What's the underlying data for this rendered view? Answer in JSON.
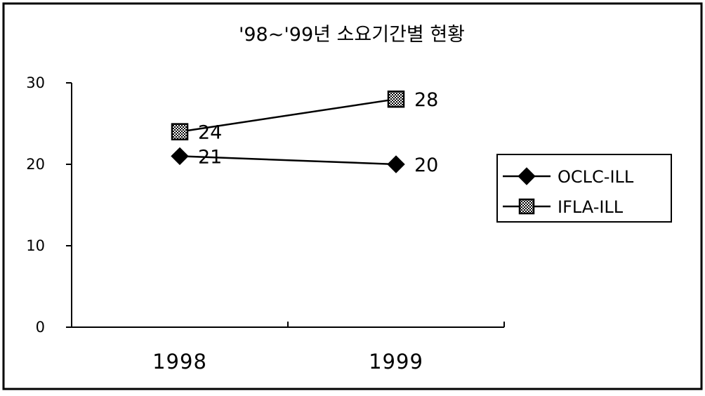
{
  "chart_data": {
    "type": "line",
    "title": "'98~'99년 소요기간별 현황",
    "xlabel": "",
    "ylabel": "",
    "categories": [
      "1998",
      "1999"
    ],
    "ylim": [
      0,
      30
    ],
    "yticks": [
      "0",
      "10",
      "20",
      "30"
    ],
    "grid": false,
    "legend": "right",
    "series": [
      {
        "name": "OCLC-ILL",
        "values": [
          21,
          20
        ],
        "labels": [
          "21",
          "20"
        ],
        "marker": "diamond",
        "color": "#000000"
      },
      {
        "name": "IFLA-ILL",
        "values": [
          24,
          28
        ],
        "labels": [
          "24",
          "28"
        ],
        "marker": "square-hatched",
        "color": "#000000"
      }
    ]
  }
}
